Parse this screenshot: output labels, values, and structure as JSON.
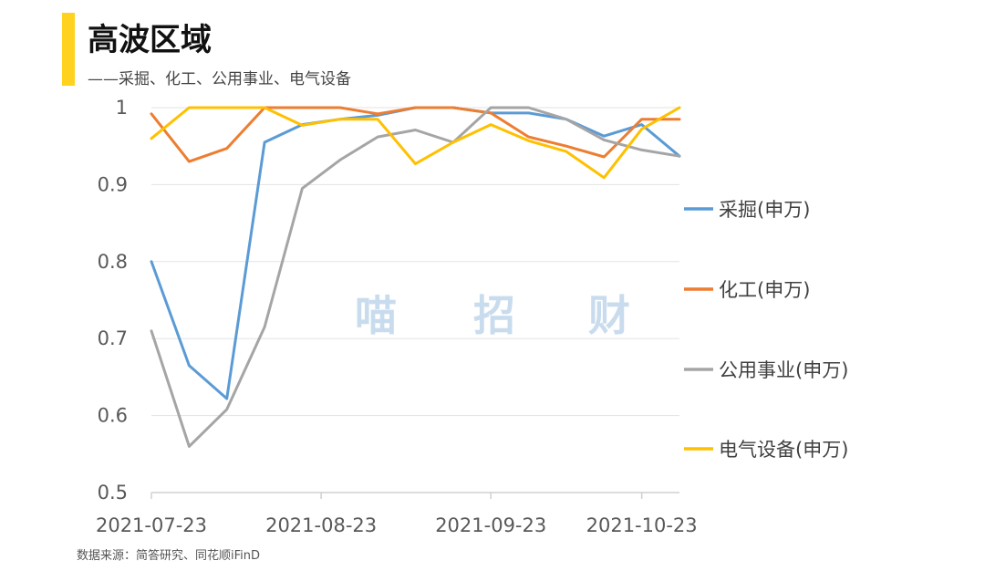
{
  "header": {
    "title": "高波区域",
    "subtitle": "——采掘、化工、公用事业、电气设备"
  },
  "footer": {
    "source": "数据来源：简答研究、同花顺iFinD"
  },
  "watermark": [
    "喵",
    "招",
    "财"
  ],
  "chart_data": {
    "type": "line",
    "title": "高波区域",
    "subtitle": "——采掘、化工、公用事业、电气设备",
    "xlabel": "",
    "ylabel": "",
    "x": [
      "2021-07-23",
      "2021-07-30",
      "2021-08-06",
      "2021-08-13",
      "2021-08-20",
      "2021-08-27",
      "2021-09-03",
      "2021-09-10",
      "2021-09-17",
      "2021-09-24",
      "2021-10-01",
      "2021-10-08",
      "2021-10-15",
      "2021-10-22",
      "2021-10-29"
    ],
    "x_tick_labels": [
      "2021-07-23",
      "2021-08-23",
      "2021-09-23",
      "2021-10-23"
    ],
    "x_tick_index": [
      0,
      4.5,
      9,
      13
    ],
    "ylim": [
      0.5,
      1
    ],
    "yticks": [
      0.5,
      0.6,
      0.7,
      0.8,
      0.9,
      1
    ],
    "ytick_labels": [
      "0.5",
      "0.6",
      "0.7",
      "0.8",
      "0.9",
      "1"
    ],
    "grid": "horizontal",
    "legend": "right",
    "series": [
      {
        "name": "采掘(申万)",
        "color": "#5B9BD5",
        "values": [
          0.8,
          0.665,
          0.622,
          0.955,
          0.978,
          0.985,
          0.99,
          1.0,
          1.0,
          0.993,
          0.993,
          0.985,
          0.963,
          0.978,
          0.937
        ]
      },
      {
        "name": "化工(申万)",
        "color": "#ED7D31",
        "values": [
          0.992,
          0.93,
          0.947,
          1.0,
          1.0,
          1.0,
          0.992,
          1.0,
          1.0,
          0.993,
          0.962,
          0.95,
          0.936,
          0.985,
          0.985
        ]
      },
      {
        "name": "公用事业(申万)",
        "color": "#A5A5A5",
        "values": [
          0.71,
          0.56,
          0.608,
          0.715,
          0.895,
          0.932,
          0.962,
          0.971,
          0.955,
          1.0,
          1.0,
          0.985,
          0.958,
          0.945,
          0.937
        ]
      },
      {
        "name": "电气设备(申万)",
        "color": "#FFC000",
        "values": [
          0.96,
          1.0,
          1.0,
          1.0,
          0.977,
          0.985,
          0.985,
          0.927,
          0.955,
          0.978,
          0.957,
          0.943,
          0.909,
          0.972,
          1.0
        ]
      }
    ]
  }
}
